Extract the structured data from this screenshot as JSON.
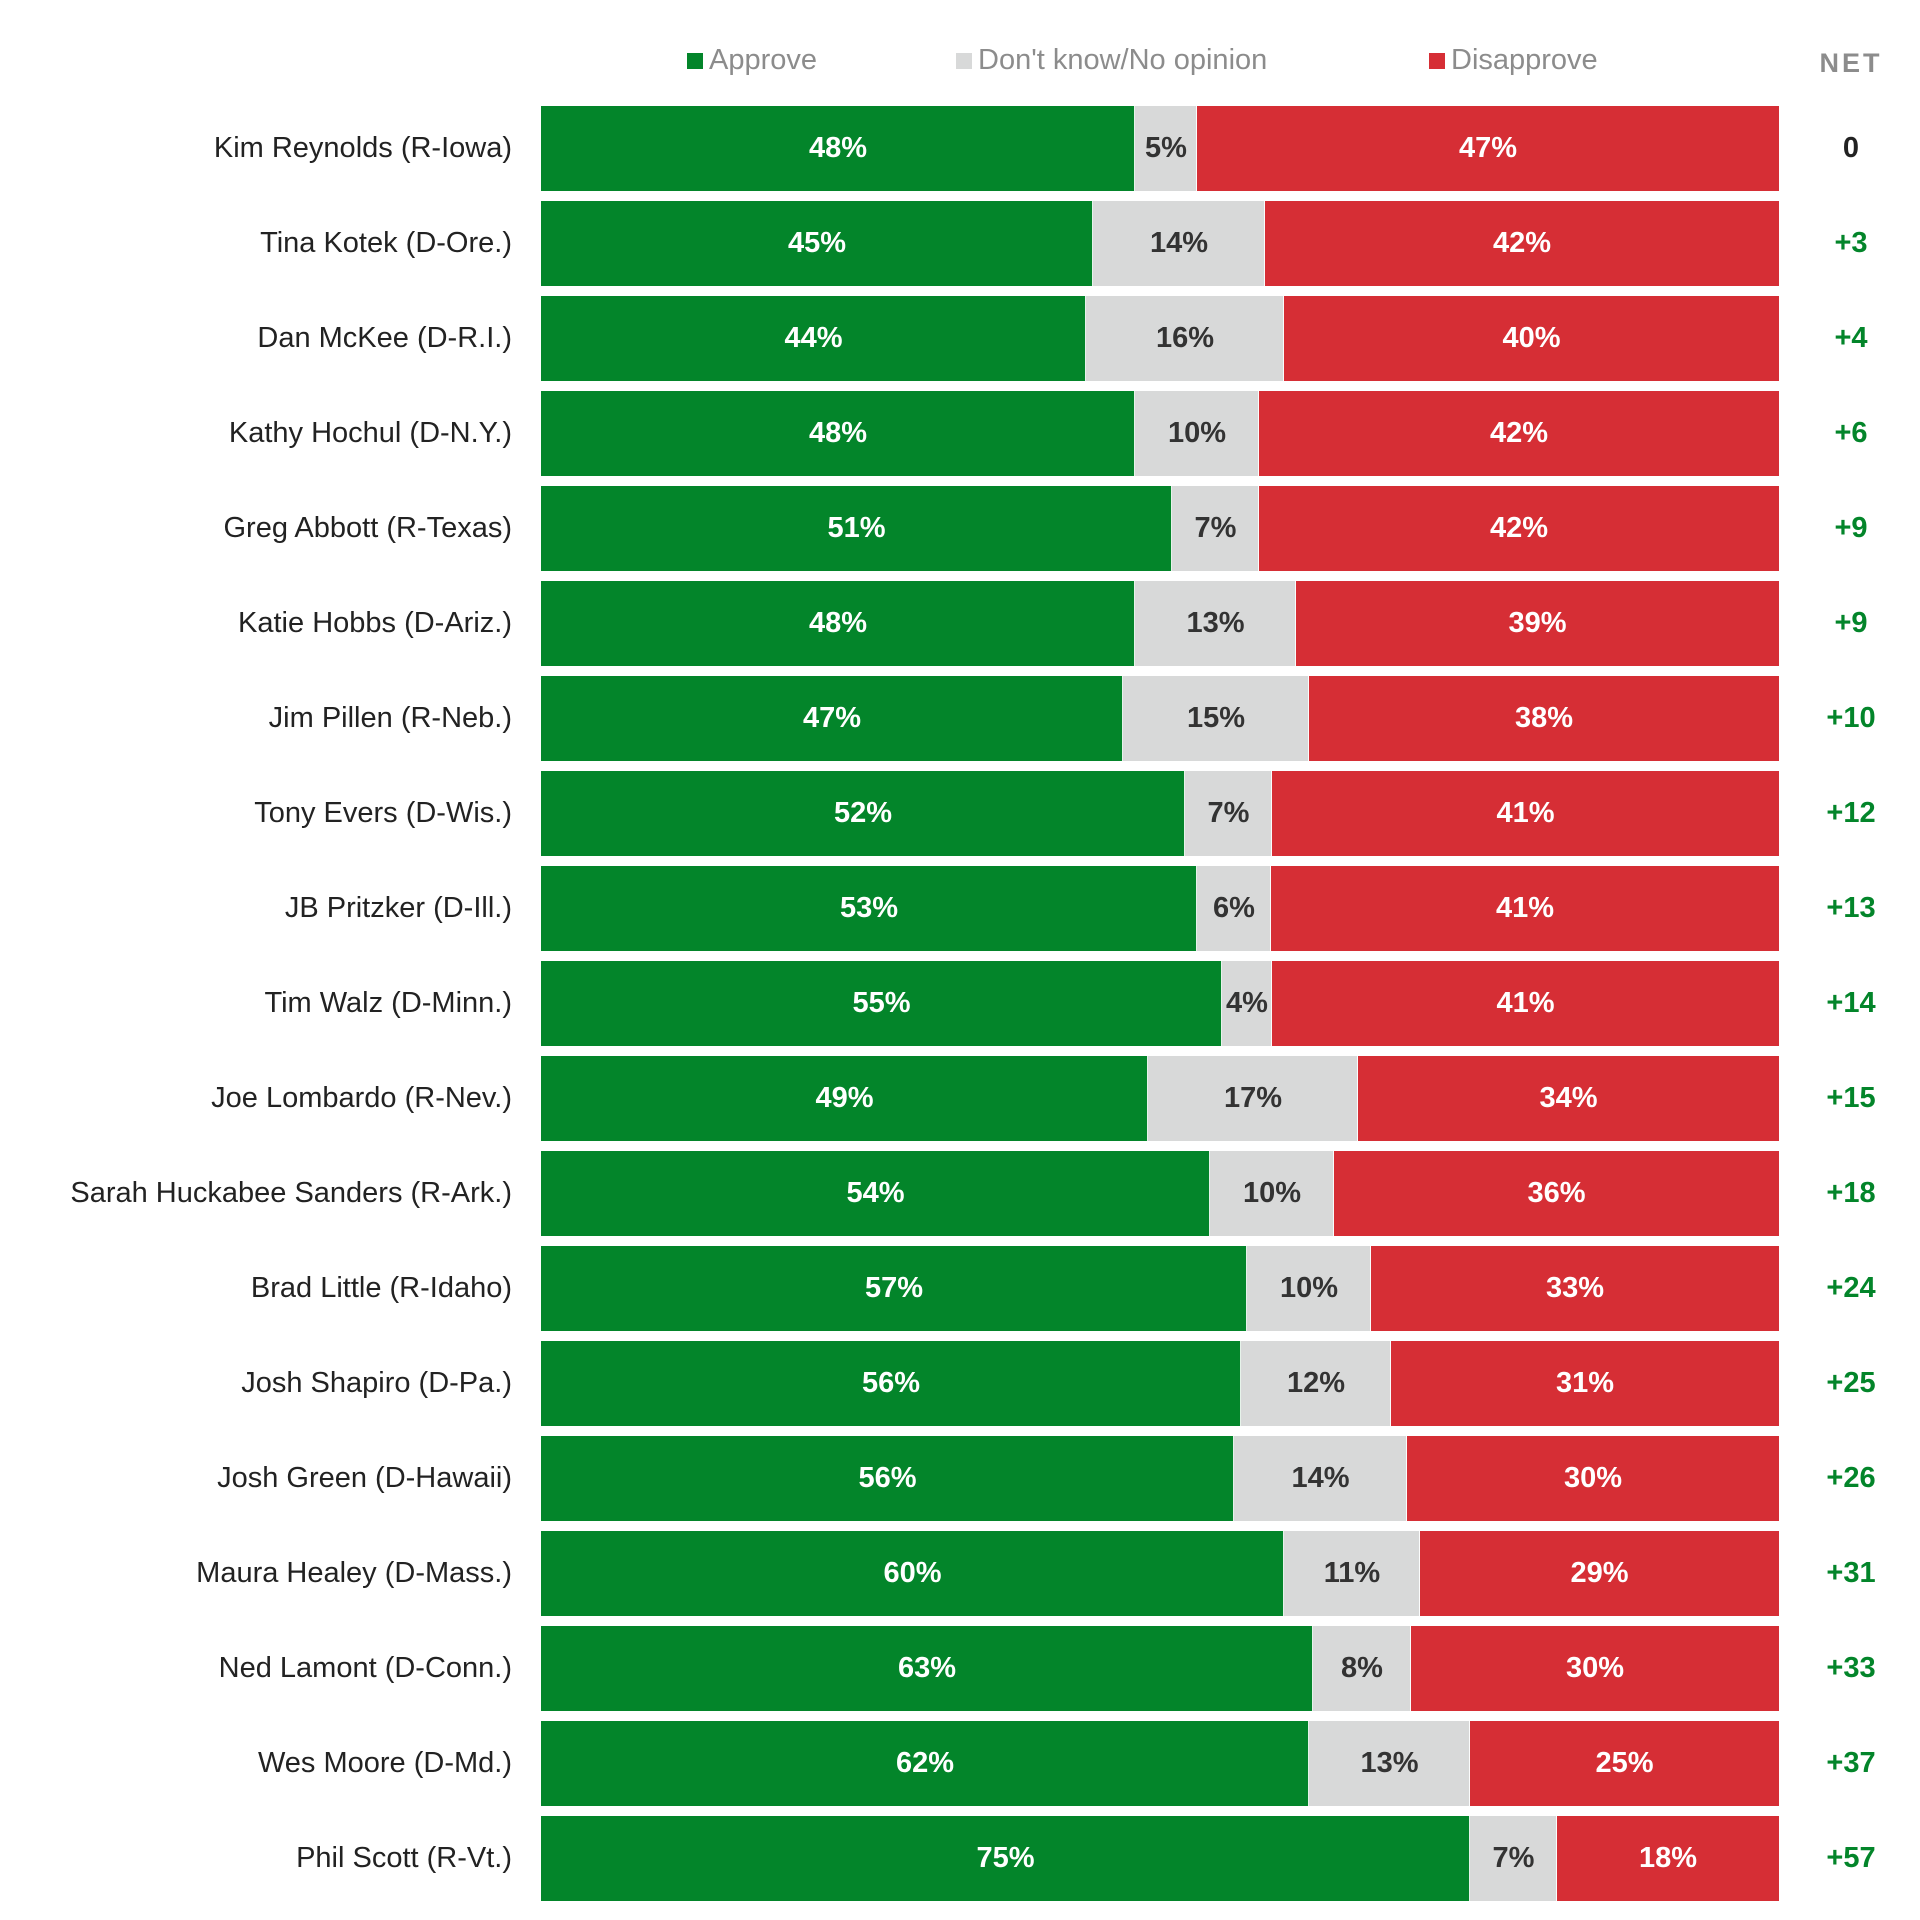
{
  "legend": {
    "approve": "Approve",
    "neutral": "Don't know/No opinion",
    "disapprove": "Disapprove"
  },
  "net_header": "NET",
  "colors": {
    "approve": "#03852a",
    "neutral": "#d8d9d9",
    "disapprove": "#d62e35",
    "net_positive": "#03852a",
    "net_zero": "#222222"
  },
  "chart_data": {
    "type": "bar",
    "orientation": "horizontal",
    "stacked": true,
    "series_names": [
      "Approve",
      "Don't know/No opinion",
      "Disapprove"
    ],
    "rows": [
      {
        "label": "Kim Reynolds (R-Iowa)",
        "approve": 48,
        "neutral": 5,
        "disapprove": 47,
        "net": "0"
      },
      {
        "label": "Tina Kotek (D-Ore.)",
        "approve": 45,
        "neutral": 14,
        "disapprove": 42,
        "net": "+3"
      },
      {
        "label": "Dan McKee (D-R.I.)",
        "approve": 44,
        "neutral": 16,
        "disapprove": 40,
        "net": "+4"
      },
      {
        "label": "Kathy Hochul (D-N.Y.)",
        "approve": 48,
        "neutral": 10,
        "disapprove": 42,
        "net": "+6"
      },
      {
        "label": "Greg Abbott (R-Texas)",
        "approve": 51,
        "neutral": 7,
        "disapprove": 42,
        "net": "+9"
      },
      {
        "label": "Katie Hobbs (D-Ariz.)",
        "approve": 48,
        "neutral": 13,
        "disapprove": 39,
        "net": "+9"
      },
      {
        "label": "Jim Pillen (R-Neb.)",
        "approve": 47,
        "neutral": 15,
        "disapprove": 38,
        "net": "+10"
      },
      {
        "label": "Tony Evers (D-Wis.)",
        "approve": 52,
        "neutral": 7,
        "disapprove": 41,
        "net": "+12"
      },
      {
        "label": "JB Pritzker (D-Ill.)",
        "approve": 53,
        "neutral": 6,
        "disapprove": 41,
        "net": "+13"
      },
      {
        "label": "Tim Walz (D-Minn.)",
        "approve": 55,
        "neutral": 4,
        "disapprove": 41,
        "net": "+14"
      },
      {
        "label": "Joe Lombardo (R-Nev.)",
        "approve": 49,
        "neutral": 17,
        "disapprove": 34,
        "net": "+15"
      },
      {
        "label": "Sarah Huckabee Sanders (R-Ark.)",
        "approve": 54,
        "neutral": 10,
        "disapprove": 36,
        "net": "+18"
      },
      {
        "label": "Brad Little (R-Idaho)",
        "approve": 57,
        "neutral": 10,
        "disapprove": 33,
        "net": "+24"
      },
      {
        "label": "Josh Shapiro (D-Pa.)",
        "approve": 56,
        "neutral": 12,
        "disapprove": 31,
        "net": "+25"
      },
      {
        "label": "Josh Green (D-Hawaii)",
        "approve": 56,
        "neutral": 14,
        "disapprove": 30,
        "net": "+26"
      },
      {
        "label": "Maura Healey (D-Mass.)",
        "approve": 60,
        "neutral": 11,
        "disapprove": 29,
        "net": "+31"
      },
      {
        "label": "Ned Lamont (D-Conn.)",
        "approve": 63,
        "neutral": 8,
        "disapprove": 30,
        "net": "+33"
      },
      {
        "label": "Wes Moore (D-Md.)",
        "approve": 62,
        "neutral": 13,
        "disapprove": 25,
        "net": "+37"
      },
      {
        "label": "Phil Scott (R-Vt.)",
        "approve": 75,
        "neutral": 7,
        "disapprove": 18,
        "net": "+57"
      }
    ]
  }
}
